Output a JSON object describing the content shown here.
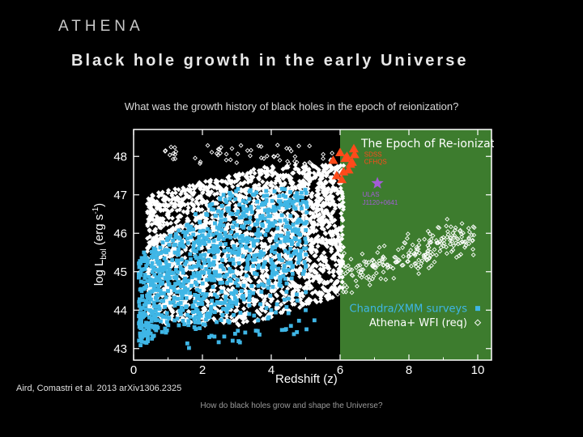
{
  "slide": {
    "logo": "ATHENA",
    "title": "Black hole growth in the early Universe",
    "question": "What was the growth history of black holes in the epoch of reionization?",
    "citation": "Aird, Comastri et al. 2013 arXiv1306.2325",
    "footer": "How do black holes grow and shape the Universe?"
  },
  "colors": {
    "background": "#000000",
    "reionization_band": "#3d7c2e",
    "chandra_xmm": "#3fb6e6",
    "athena_wfi": "#ffffff",
    "sdss_cfhqs": "#ff4a1a",
    "ulas": "#a35cd6"
  },
  "chart_data": {
    "type": "scatter",
    "xlabel": "Redshift (z)",
    "ylabel": "log L_bol (erg s^-1)",
    "xlim": [
      0,
      10.4
    ],
    "ylim": [
      42.7,
      48.7
    ],
    "xticks": [
      "0",
      "2",
      "4",
      "6",
      "8",
      "10"
    ],
    "yticks": [
      "43",
      "44",
      "45",
      "46",
      "47",
      "48"
    ],
    "band": {
      "label": "The Epoch of Re-ionization",
      "x_from": 6,
      "x_to": 10.4
    },
    "annotations": {
      "sdss": [
        "SDSS",
        "CFHQS"
      ],
      "ulas": [
        "ULAS",
        "J1120+0641"
      ]
    },
    "legend": {
      "position": "bottom-right",
      "entries": [
        {
          "label": "Chandra/XMM surveys",
          "marker": "square"
        },
        {
          "label": "Athena+ WFI (req)",
          "marker": "diamond"
        }
      ]
    },
    "series": [
      {
        "name": "Chandra/XMM surveys",
        "marker": "square",
        "description": "dense cloud of X-ray selected AGN",
        "z_range": [
          0.1,
          5.2
        ],
        "logL_range": [
          42.9,
          47.3
        ],
        "sample_points": [
          [
            0.5,
            43.6
          ],
          [
            1,
            44.5
          ],
          [
            1.5,
            45.2
          ],
          [
            2,
            45.8
          ],
          [
            2.5,
            46.2
          ],
          [
            3,
            46.5
          ],
          [
            0.8,
            44.9
          ],
          [
            1.2,
            45.5
          ],
          [
            3.5,
            45.8
          ],
          [
            4,
            45.3
          ],
          [
            4.5,
            44.3
          ],
          [
            5,
            44.0
          ],
          [
            2.2,
            43.3
          ],
          [
            0.3,
            45.5
          ],
          [
            1.8,
            46.5
          ],
          [
            2.8,
            46.9
          ]
        ]
      },
      {
        "name": "Athena+ WFI (req)",
        "marker": "diamond",
        "description": "predicted detections extending to z~10",
        "z_range": [
          0.5,
          9.9
        ],
        "logL_range": [
          43.5,
          48.3
        ],
        "sample_points": [
          [
            1,
            47.5
          ],
          [
            2,
            47.7
          ],
          [
            3,
            47.9
          ],
          [
            4,
            47.9
          ],
          [
            5,
            47.7
          ],
          [
            6,
            46.3
          ],
          [
            6.5,
            46.0
          ],
          [
            7,
            45.8
          ],
          [
            7.5,
            45.6
          ],
          [
            8,
            46.1
          ],
          [
            8.5,
            45.9
          ],
          [
            9,
            45.8
          ],
          [
            9.5,
            45.6
          ],
          [
            6.2,
            44.9
          ],
          [
            7.2,
            45.2
          ],
          [
            6.8,
            46.6
          ]
        ]
      },
      {
        "name": "SDSS / CFHQS",
        "marker": "triangle",
        "points": [
          [
            5.8,
            47.9
          ],
          [
            6.0,
            48.1
          ],
          [
            6.1,
            47.6
          ],
          [
            6.2,
            48.0
          ],
          [
            6.3,
            47.8
          ],
          [
            6.4,
            48.2
          ],
          [
            5.9,
            47.5
          ],
          [
            6.05,
            47.4
          ],
          [
            6.15,
            47.95
          ],
          [
            6.25,
            47.65
          ],
          [
            6.35,
            47.85
          ],
          [
            6.42,
            48.05
          ]
        ]
      },
      {
        "name": "ULAS J1120+0641",
        "marker": "star",
        "points": [
          [
            7.085,
            47.3
          ]
        ]
      }
    ]
  }
}
